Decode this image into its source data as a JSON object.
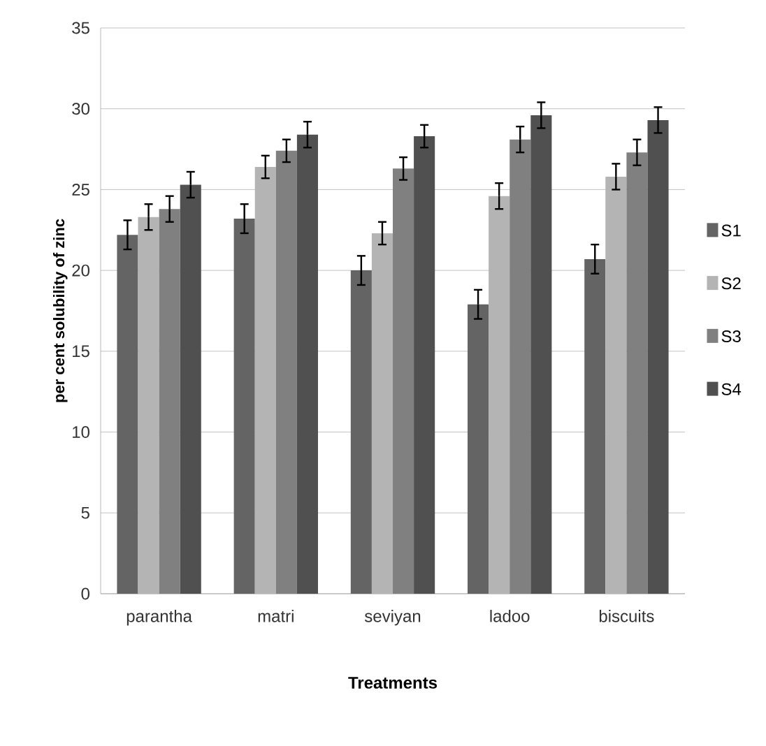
{
  "chart_data": {
    "type": "bar",
    "xlabel": "Treatments",
    "ylabel": "per cent solubility of zinc",
    "categories": [
      "parantha",
      "matri",
      "seviyan",
      "ladoo",
      "biscuits"
    ],
    "series": [
      {
        "name": "S1",
        "color": "#646464",
        "values": [
          22.2,
          23.2,
          20.0,
          17.9,
          20.7
        ],
        "errors": [
          0.9,
          0.9,
          0.9,
          0.9,
          0.9
        ]
      },
      {
        "name": "S2",
        "color": "#b4b4b4",
        "values": [
          23.3,
          26.4,
          22.3,
          24.6,
          25.8
        ],
        "errors": [
          0.8,
          0.7,
          0.7,
          0.8,
          0.8
        ]
      },
      {
        "name": "S3",
        "color": "#808080",
        "values": [
          23.8,
          27.4,
          26.3,
          28.1,
          27.3
        ],
        "errors": [
          0.8,
          0.7,
          0.7,
          0.8,
          0.8
        ]
      },
      {
        "name": "S4",
        "color": "#505050",
        "values": [
          25.3,
          28.4,
          28.3,
          29.6,
          29.3
        ],
        "errors": [
          0.8,
          0.8,
          0.7,
          0.8,
          0.8
        ]
      }
    ],
    "ylim": [
      0,
      35
    ],
    "yticks": [
      0,
      5,
      10,
      15,
      20,
      25,
      30,
      35
    ],
    "grid": "y",
    "legend": "right"
  }
}
